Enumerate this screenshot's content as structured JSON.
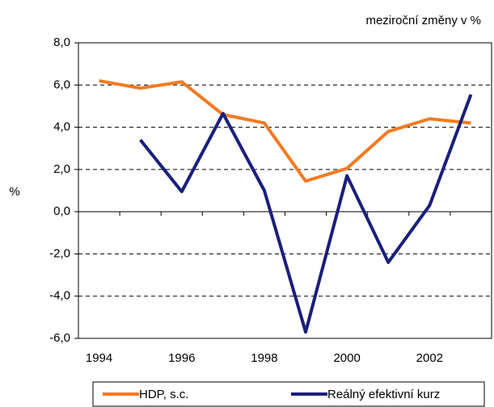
{
  "chart_data": {
    "type": "line",
    "annotation": "meziroční změny v %",
    "y_label": "%",
    "categories": [
      "1994",
      null,
      "1996",
      null,
      "1998",
      null,
      "2000",
      null,
      "2002",
      null
    ],
    "series": [
      {
        "name": "HDP, s.c.",
        "color": "#f47a20",
        "values": [
          6.2,
          5.85,
          6.15,
          4.6,
          4.2,
          1.45,
          2.05,
          3.8,
          4.4,
          4.2
        ]
      },
      {
        "name": "Reálný efektivní kurz",
        "color": "#1a1f7a",
        "values": [
          null,
          3.4,
          0.95,
          4.65,
          1.0,
          -5.7,
          1.7,
          -2.4,
          0.3,
          5.55
        ]
      }
    ],
    "ylim": [
      -6,
      8
    ],
    "yticks": [
      {
        "value": -6,
        "label": "-6,0"
      },
      {
        "value": -4,
        "label": "-4,0"
      },
      {
        "value": -2,
        "label": "-2,0"
      },
      {
        "value": 0,
        "label": "0,0"
      },
      {
        "value": 2,
        "label": "2,0"
      },
      {
        "value": 4,
        "label": "4,0"
      },
      {
        "value": 6,
        "label": "6,0"
      },
      {
        "value": 8,
        "label": "8,0"
      }
    ],
    "grid": true
  }
}
